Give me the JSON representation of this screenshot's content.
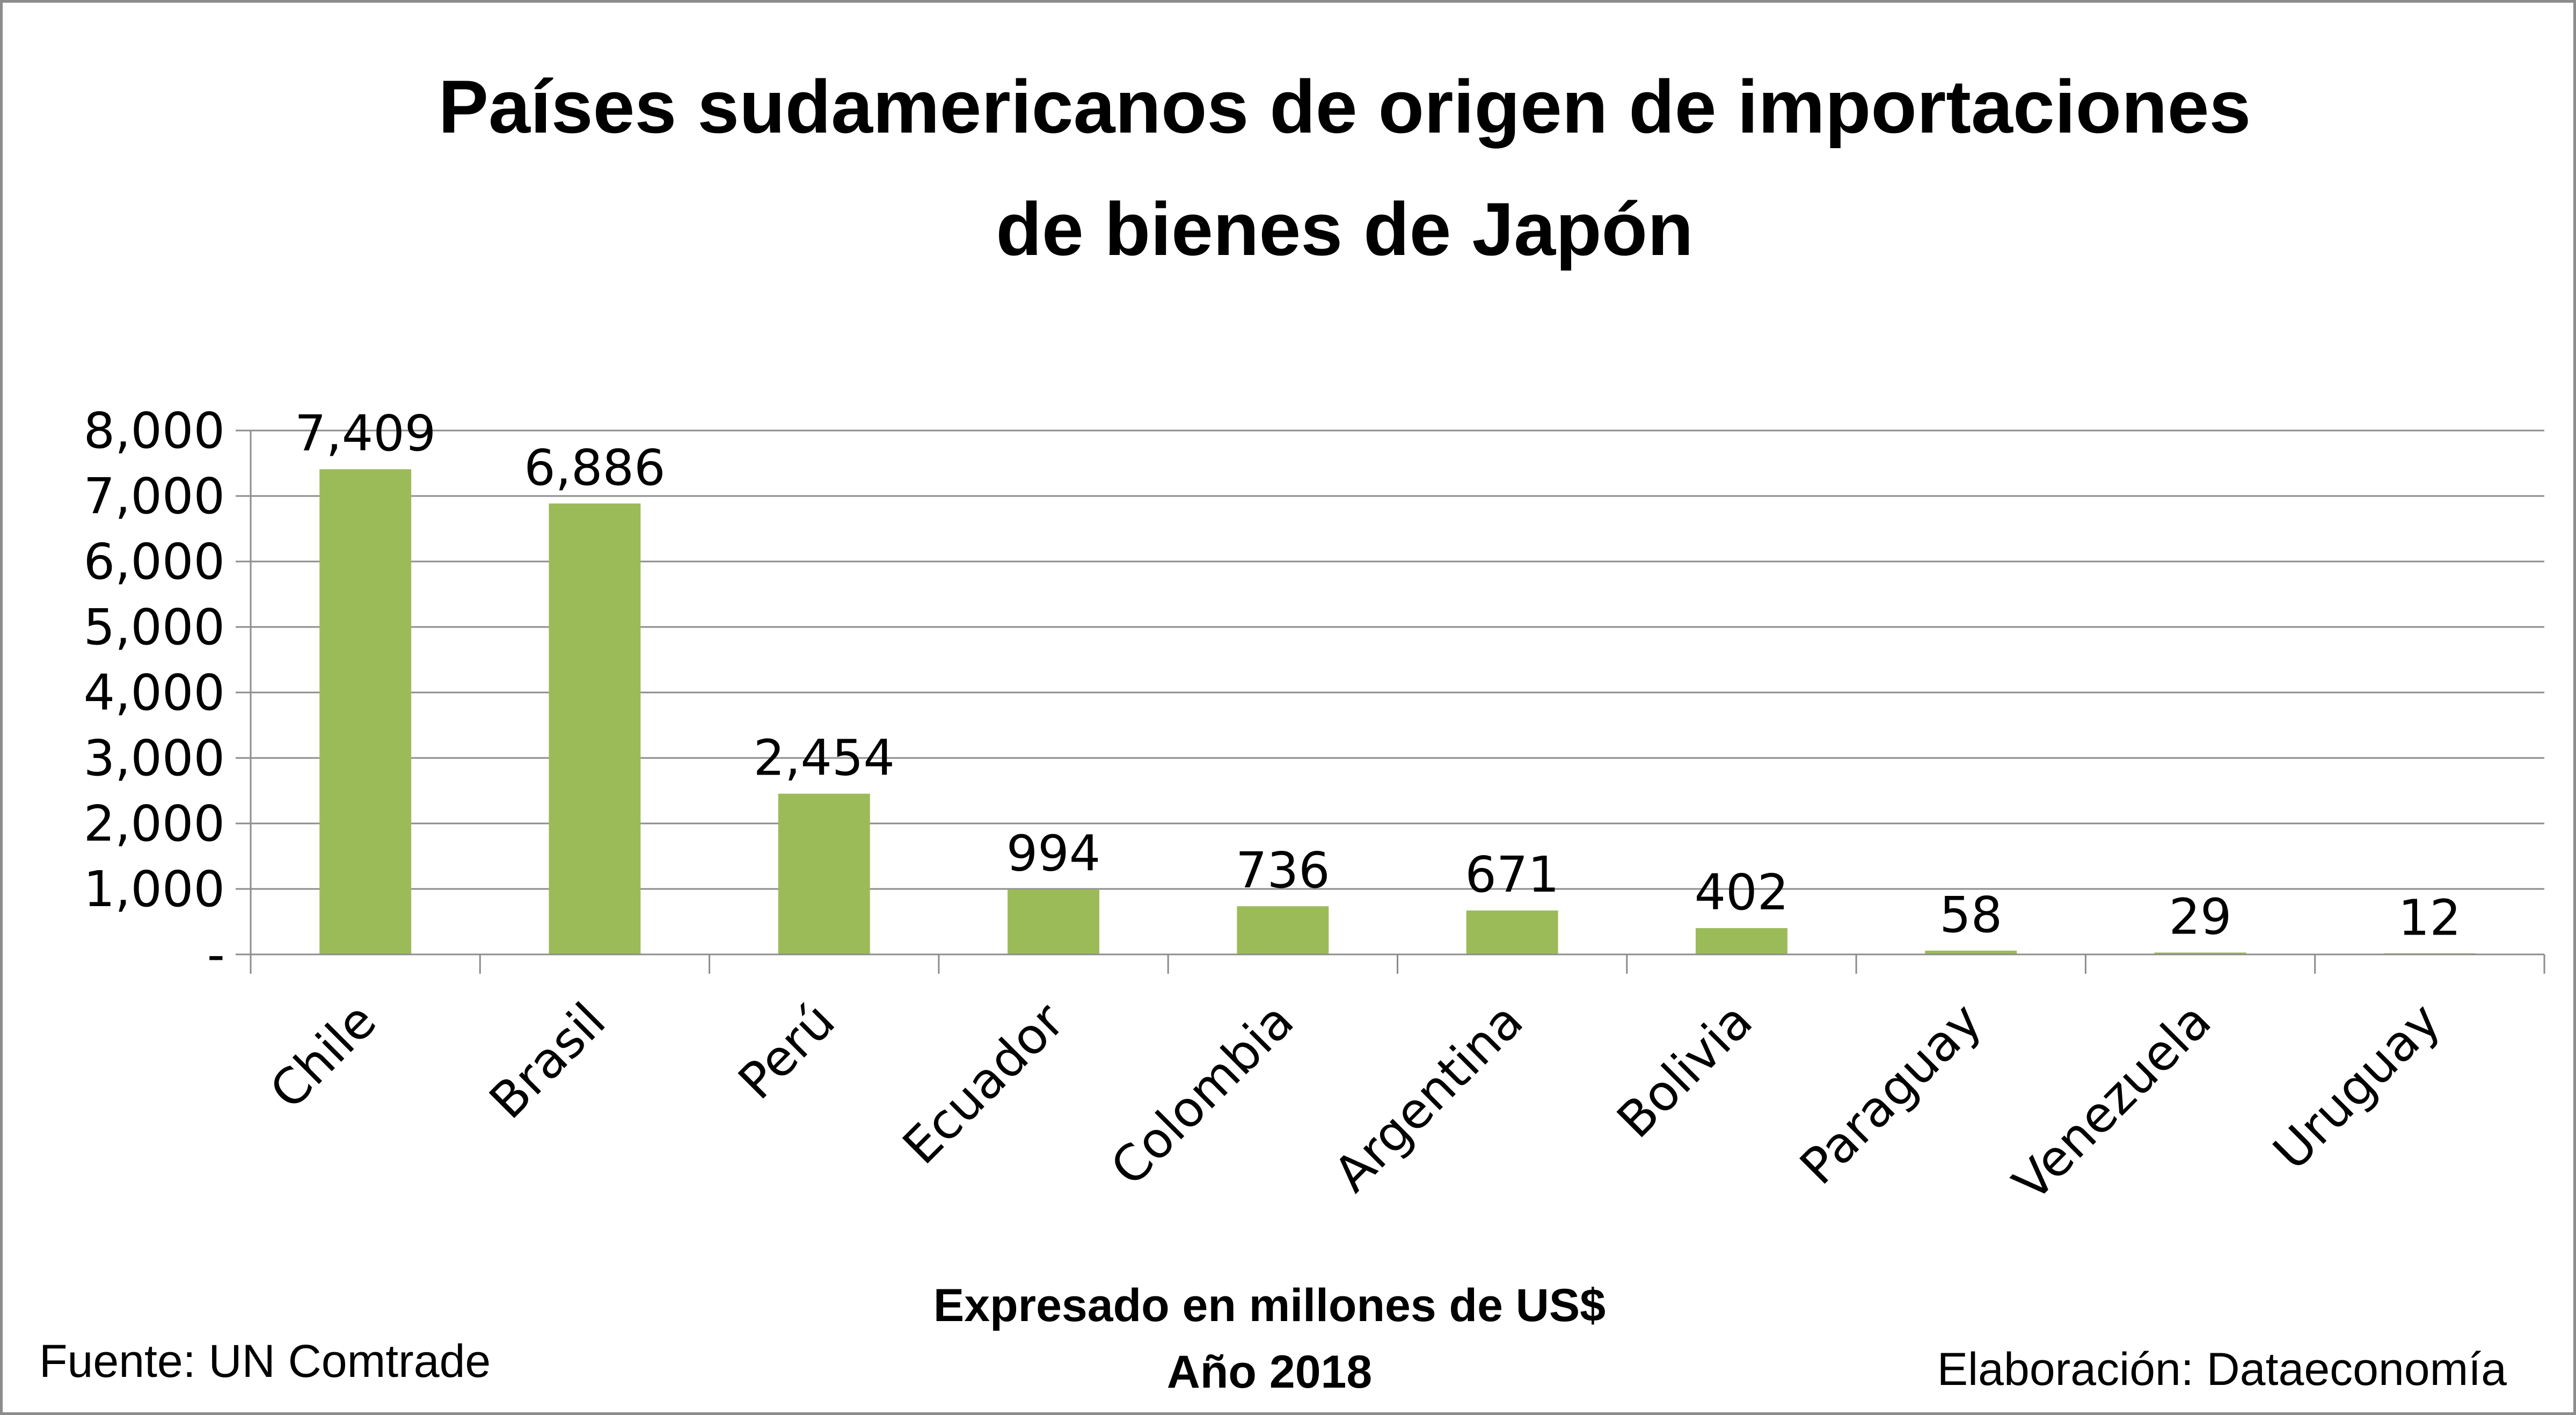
{
  "chart_data": {
    "type": "bar",
    "title_lines": [
      "Países sudamericanos de origen de importaciones",
      "de bienes de Japón"
    ],
    "categories": [
      "Chile",
      "Brasil",
      "Perú",
      "Ecuador",
      "Colombia",
      "Argentina",
      "Bolivia",
      "Paraguay",
      "Venezuela",
      "Uruguay"
    ],
    "values": [
      7409,
      6886,
      2454,
      994,
      736,
      671,
      402,
      58,
      29,
      12
    ],
    "data_labels": [
      "7,409",
      "6,886",
      "2,454",
      "994",
      "736",
      "671",
      "402",
      "58",
      "29",
      "12"
    ],
    "y_ticks": [
      0,
      1000,
      2000,
      3000,
      4000,
      5000,
      6000,
      7000,
      8000
    ],
    "y_tick_labels": [
      "-",
      "1,000",
      "2,000",
      "3,000",
      "4,000",
      "5,000",
      "6,000",
      "7,000",
      "8,000"
    ],
    "ylim": [
      0,
      8000
    ],
    "grid": true,
    "bar_color": "#9bbb59",
    "subtitle_lines": [
      "Expresado en millones de US$",
      "Año 2018"
    ],
    "source": "Fuente: UN Comtrade",
    "credit": "Elaboración: Dataeconomía"
  }
}
